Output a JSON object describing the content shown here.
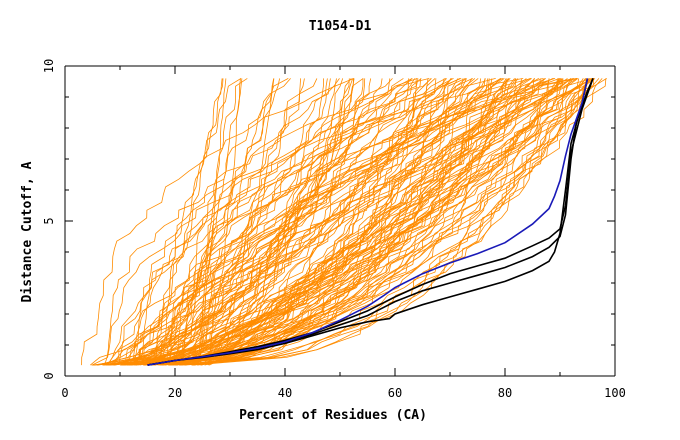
{
  "chart_data": {
    "type": "line",
    "title": "T1054-D1",
    "xlabel": "Percent of Residues (CA)",
    "ylabel": "Distance Cutoff, A",
    "xlim": [
      0,
      100
    ],
    "ylim": [
      0,
      10
    ],
    "x_ticks": [
      "0",
      "20",
      "40",
      "60",
      "80",
      "100"
    ],
    "y_ticks": [
      "0",
      "5",
      "10"
    ],
    "grid": false,
    "legend": "none",
    "colors": {
      "background_models": "#ff8c00",
      "highlight_blue": "#1a1ab8",
      "highlight_black": "#000000"
    },
    "background_count_estimate": 150,
    "highlighted_series": [
      {
        "color": "#1a1ab8",
        "points": [
          [
            15.0,
            0.35
          ],
          [
            20,
            0.5
          ],
          [
            25,
            0.62
          ],
          [
            30,
            0.75
          ],
          [
            35,
            0.9
          ],
          [
            40,
            1.1
          ],
          [
            45,
            1.4
          ],
          [
            50,
            1.8
          ],
          [
            55,
            2.25
          ],
          [
            58,
            2.6
          ],
          [
            60,
            2.85
          ],
          [
            65,
            3.3
          ],
          [
            70,
            3.65
          ],
          [
            75,
            3.95
          ],
          [
            80,
            4.3
          ],
          [
            85,
            4.9
          ],
          [
            88,
            5.4
          ],
          [
            89,
            5.8
          ],
          [
            90,
            6.3
          ],
          [
            91,
            7.1
          ],
          [
            92,
            7.8
          ],
          [
            93,
            8.3
          ],
          [
            94,
            8.8
          ],
          [
            95,
            9.6
          ]
        ]
      },
      {
        "color": "#000000",
        "points": [
          [
            15.0,
            0.35
          ],
          [
            20,
            0.5
          ],
          [
            25,
            0.6
          ],
          [
            30,
            0.72
          ],
          [
            35,
            0.85
          ],
          [
            40,
            1.05
          ],
          [
            45,
            1.3
          ],
          [
            50,
            1.55
          ],
          [
            55,
            1.75
          ],
          [
            59,
            1.85
          ],
          [
            60,
            2.0
          ],
          [
            65,
            2.3
          ],
          [
            70,
            2.55
          ],
          [
            75,
            2.8
          ],
          [
            80,
            3.05
          ],
          [
            85,
            3.4
          ],
          [
            88,
            3.7
          ],
          [
            89,
            4.0
          ],
          [
            90,
            4.6
          ],
          [
            91,
            6.0
          ],
          [
            92,
            7.5
          ],
          [
            94,
            8.8
          ],
          [
            95,
            9.6
          ]
        ]
      },
      {
        "color": "#000000",
        "points": [
          [
            15.0,
            0.35
          ],
          [
            20,
            0.5
          ],
          [
            25,
            0.62
          ],
          [
            30,
            0.76
          ],
          [
            35,
            0.92
          ],
          [
            40,
            1.1
          ],
          [
            45,
            1.35
          ],
          [
            50,
            1.65
          ],
          [
            55,
            1.95
          ],
          [
            60,
            2.4
          ],
          [
            65,
            2.75
          ],
          [
            70,
            3.0
          ],
          [
            75,
            3.25
          ],
          [
            80,
            3.5
          ],
          [
            85,
            3.85
          ],
          [
            88,
            4.15
          ],
          [
            90,
            4.5
          ],
          [
            91,
            5.2
          ],
          [
            92,
            7.0
          ],
          [
            93,
            8.2
          ],
          [
            95,
            9.2
          ],
          [
            96,
            9.6
          ]
        ]
      },
      {
        "color": "#000000",
        "points": [
          [
            15.0,
            0.35
          ],
          [
            20,
            0.5
          ],
          [
            25,
            0.63
          ],
          [
            30,
            0.78
          ],
          [
            35,
            0.95
          ],
          [
            40,
            1.15
          ],
          [
            45,
            1.4
          ],
          [
            50,
            1.75
          ],
          [
            55,
            2.1
          ],
          [
            60,
            2.55
          ],
          [
            65,
            2.95
          ],
          [
            70,
            3.3
          ],
          [
            75,
            3.55
          ],
          [
            80,
            3.8
          ],
          [
            85,
            4.2
          ],
          [
            88,
            4.45
          ],
          [
            90,
            4.75
          ],
          [
            91,
            5.5
          ],
          [
            92,
            7.2
          ],
          [
            94,
            8.6
          ],
          [
            96,
            9.6
          ]
        ]
      }
    ]
  }
}
